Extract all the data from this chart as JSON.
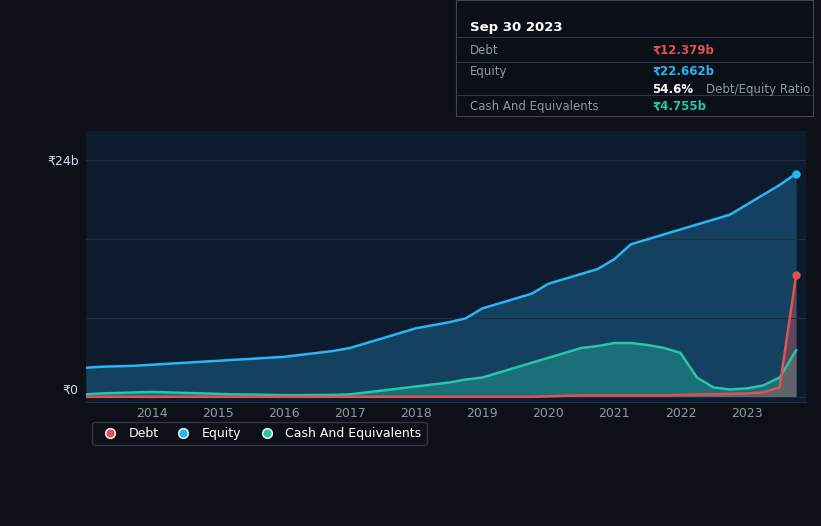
{
  "bg_color": "#0d1117",
  "plot_bg_color": "#0d1b2e",
  "grid_color": "#1e2d40",
  "title_date": "Sep 30 2023",
  "debt_label": "Debt",
  "equity_label": "Equity",
  "cash_label": "Cash And Equivalents",
  "debt_value": "₹12.379b",
  "equity_value": "₹22.662b",
  "ratio_value": "54.6%",
  "ratio_label": "Debt/Equity Ratio",
  "cash_value": "₹4.755b",
  "debt_color": "#e05252",
  "equity_color": "#29b6f6",
  "cash_color": "#26c6a6",
  "ylabel_text": "₹24b",
  "y0_text": "₹0",
  "ylim": [
    0,
    24
  ],
  "years": [
    2013,
    2014,
    2015,
    2016,
    2017,
    2018,
    2019,
    2020,
    2021,
    2022,
    2023,
    2023.75
  ],
  "equity_data": [
    3.0,
    3.2,
    3.5,
    4.2,
    5.5,
    7.5,
    10.0,
    12.5,
    15.5,
    18.5,
    21.5,
    22.662
  ],
  "debt_data": [
    0.05,
    0.05,
    0.05,
    0.05,
    0.05,
    0.05,
    0.05,
    0.2,
    0.2,
    0.3,
    0.5,
    12.379
  ],
  "cash_data": [
    0.3,
    0.5,
    0.3,
    0.2,
    0.4,
    1.0,
    2.0,
    3.5,
    5.5,
    4.0,
    1.5,
    4.755
  ],
  "x_ticks": [
    2014,
    2015,
    2016,
    2017,
    2018,
    2019,
    2020,
    2021,
    2022,
    2023
  ],
  "legend_labels": [
    "Debt",
    "Equity",
    "Cash And Equivalents"
  ],
  "legend_colors": [
    "#e05252",
    "#29b6f6",
    "#26c6a6"
  ]
}
